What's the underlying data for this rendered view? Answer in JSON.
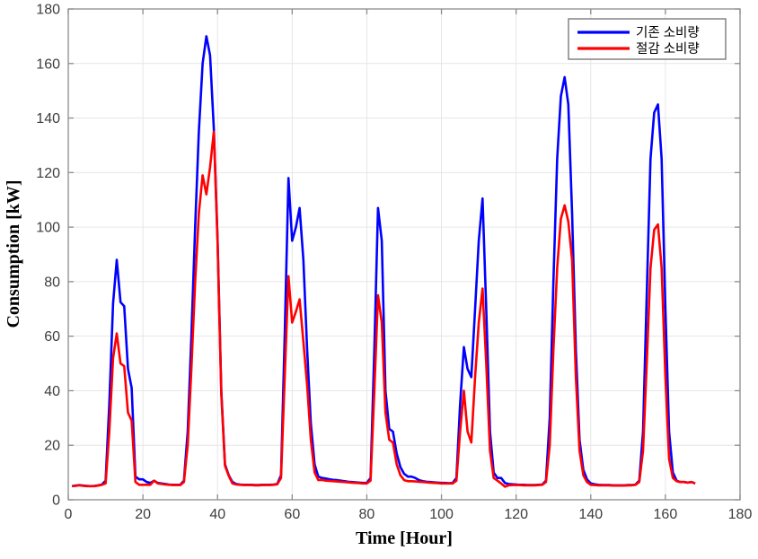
{
  "chart_data": {
    "type": "line",
    "title": "",
    "xlabel": "Time [Hour]",
    "ylabel": "Consumption [kW]",
    "xlim": [
      0,
      180
    ],
    "ylim": [
      0,
      180
    ],
    "xticks": [
      0,
      20,
      40,
      60,
      80,
      100,
      120,
      140,
      160,
      180
    ],
    "yticks": [
      0,
      20,
      40,
      60,
      80,
      100,
      120,
      140,
      160,
      180
    ],
    "grid": true,
    "legend_position": "top-right",
    "x_start": 1,
    "x_step": 1,
    "colors": {
      "series_blue": "#0000FF",
      "series_red": "#FF0000",
      "axis_box": "#8c8c8c",
      "grid_line": "#e6e6e6",
      "tick_text": "#3d3d3d",
      "legend_border": "#7a7a7a"
    },
    "series": [
      {
        "name": "기존 소비량",
        "color": "#0000FF",
        "values": [
          5,
          5.2,
          5.4,
          5.2,
          5.1,
          5,
          5.1,
          5.3,
          5.6,
          7,
          35,
          72,
          88,
          72.5,
          71,
          48,
          41,
          8.5,
          7.5,
          7.5,
          6.5,
          6.2,
          7,
          6.2,
          6,
          5.8,
          5.6,
          5.5,
          5.5,
          5.5,
          7,
          25,
          60,
          100,
          135,
          160,
          170,
          163,
          136,
          96,
          40,
          13,
          9,
          6.5,
          5.8,
          5.6,
          5.5,
          5.5,
          5.5,
          5.4,
          5.4,
          5.5,
          5.5,
          5.5,
          5.6,
          5.8,
          9,
          60,
          118,
          95,
          100,
          107,
          88,
          55,
          28,
          13,
          8.5,
          8,
          7.8,
          7.5,
          7.3,
          7.2,
          7,
          6.8,
          6.6,
          6.5,
          6.4,
          6.3,
          6.2,
          6.2,
          8,
          55,
          107,
          95,
          40,
          26,
          25,
          17,
          12,
          9.5,
          8.5,
          8.5,
          8,
          7.2,
          6.8,
          6.6,
          6.5,
          6.4,
          6.3,
          6.2,
          6.2,
          6.1,
          6.2,
          8,
          35,
          56,
          48,
          45,
          70,
          95,
          110.5,
          70,
          25,
          10,
          8,
          8,
          6.2,
          5.8,
          5.7,
          5.6,
          5.5,
          5.5,
          5.4,
          5.4,
          5.4,
          5.5,
          5.6,
          7,
          30,
          80,
          125,
          148,
          155,
          145,
          105,
          55,
          22,
          11,
          7.5,
          6,
          5.7,
          5.5,
          5.4,
          5.4,
          5.4,
          5.3,
          5.3,
          5.3,
          5.3,
          5.4,
          5.4,
          5.6,
          7,
          25,
          75,
          125,
          142,
          145,
          125,
          70,
          25,
          10,
          7,
          6.5,
          6.5,
          6.3,
          6.5,
          6
        ]
      },
      {
        "name": "절감 소비량",
        "color": "#FF0000",
        "values": [
          5,
          5.1,
          5.3,
          5.1,
          5,
          5,
          5,
          5.2,
          5.5,
          6,
          25,
          52,
          61,
          50,
          49,
          32,
          29,
          6.5,
          5.5,
          5.5,
          5.5,
          5.5,
          7,
          6,
          5.8,
          5.6,
          5.5,
          5.4,
          5.4,
          5.4,
          6.5,
          20,
          48,
          80,
          105,
          119,
          112,
          122,
          135,
          95,
          39,
          12.5,
          8.8,
          6,
          5.6,
          5.5,
          5.4,
          5.4,
          5.4,
          5.3,
          5.3,
          5.4,
          5.4,
          5.4,
          5.5,
          5.7,
          8,
          45,
          82,
          65,
          69,
          73.5,
          58,
          42,
          22,
          10,
          7.2,
          7.3,
          7,
          6.9,
          6.8,
          6.7,
          6.6,
          6.5,
          6.4,
          6.3,
          6.2,
          6.1,
          6,
          6,
          7,
          40,
          75,
          65,
          32,
          22,
          21,
          13,
          9,
          7.2,
          6.8,
          6.8,
          6.7,
          6.6,
          6.5,
          6.4,
          6.3,
          6.2,
          6.1,
          6,
          6,
          6,
          6,
          7,
          25,
          40,
          25,
          21,
          45,
          65,
          77.5,
          50,
          18,
          8,
          7,
          6,
          4.8,
          5.3,
          5.4,
          5.4,
          5.4,
          5.3,
          5.3,
          5.3,
          5.3,
          5.4,
          5.5,
          6.5,
          20,
          55,
          85,
          103,
          108,
          102,
          88,
          45,
          18,
          9,
          6.5,
          5.5,
          5.4,
          5.3,
          5.3,
          5.3,
          5.3,
          5.2,
          5.2,
          5.2,
          5.2,
          5.3,
          5.3,
          5.5,
          6.5,
          18,
          50,
          85,
          99,
          101,
          85,
          45,
          15,
          8,
          6.8,
          6.5,
          6.5,
          6.3,
          6.5,
          6
        ]
      }
    ]
  }
}
